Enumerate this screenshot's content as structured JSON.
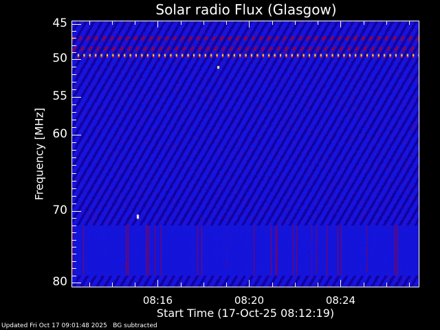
{
  "chart_data": {
    "type": "heatmap",
    "title": "Solar radio Flux (Glasgow)",
    "xlabel": "Start Time (17-Oct-25 08:12:19)",
    "ylabel": "Frequency [MHz]",
    "xticks": [
      "08:16",
      "08:20",
      "08:24"
    ],
    "yticks": [
      "45",
      "50",
      "55",
      "60",
      "70",
      "80"
    ],
    "xlim": [
      "08:12:19",
      "08:27:26"
    ],
    "ylim": [
      45,
      80
    ],
    "colormap": [
      "#000060",
      "#1818e0",
      "#a00020",
      "#ffff00",
      "#ffffff"
    ],
    "features": [
      {
        "type": "interference-line",
        "frequency_mhz": 49.5
      },
      {
        "type": "enhanced-band",
        "frequency_mhz": 47
      },
      {
        "type": "enhanced-band",
        "frequency_mhz": 48.5
      },
      {
        "type": "noisy-band",
        "frequency_mhz": [
          72,
          79
        ]
      }
    ]
  },
  "footer": {
    "updated": "Updated Fri Oct 17 09:01:48 2025",
    "note": "BG subtracted"
  }
}
